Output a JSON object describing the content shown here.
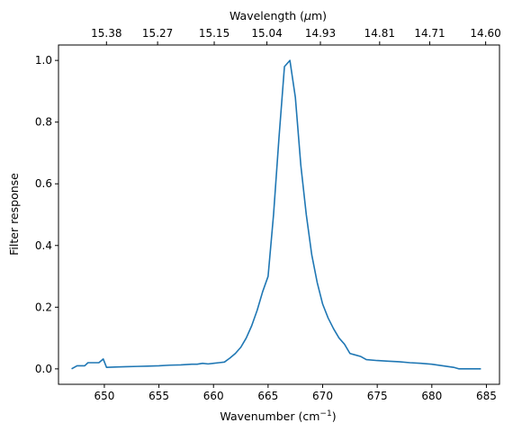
{
  "chart_data": {
    "type": "line",
    "xlabel": "Wavenumber (cm",
    "xlabel_sup": "−1",
    "xlabel_end": ")",
    "ylabel": "Filter response",
    "top_xlabel": "Wavelength (",
    "top_xlabel_mu": "μ",
    "top_xlabel_end": "m)",
    "xlim": [
      645.8,
      686.2
    ],
    "ylim": [
      -0.05,
      1.05
    ],
    "x_ticks": [
      650,
      655,
      660,
      665,
      670,
      675,
      680,
      685
    ],
    "x_tick_labels": [
      "650",
      "655",
      "660",
      "665",
      "670",
      "675",
      "680",
      "685"
    ],
    "y_ticks": [
      0.0,
      0.2,
      0.4,
      0.6,
      0.8,
      1.0
    ],
    "y_tick_labels": [
      "0.0",
      "0.2",
      "0.4",
      "0.6",
      "0.8",
      "1.0"
    ],
    "top_ticks": [
      15.38,
      15.27,
      15.15,
      15.04,
      14.93,
      14.81,
      14.71,
      14.6
    ],
    "top_tick_labels": [
      "15.38",
      "15.27",
      "15.15",
      "15.04",
      "14.93",
      "14.81",
      "14.71",
      "14.60"
    ],
    "line_color": "#1f77b4",
    "series": [
      {
        "x": [
          647.0,
          647.5,
          648.2,
          648.5,
          649.0,
          649.5,
          649.9,
          650.2,
          651.0,
          652.0,
          653.0,
          654.0,
          655.0,
          656.0,
          657.0,
          658.0,
          658.5,
          659.0,
          659.5,
          660.0,
          660.5,
          661.0,
          661.5,
          662.0,
          662.5,
          663.0,
          663.5,
          664.0,
          664.5,
          665.0,
          665.5,
          666.0,
          666.5,
          667.0,
          667.5,
          668.0,
          668.5,
          669.0,
          669.5,
          670.0,
          670.5,
          671.0,
          671.5,
          672.0,
          672.5,
          673.0,
          673.5,
          674.0,
          675.0,
          676.0,
          677.0,
          678.0,
          679.0,
          680.0,
          681.0,
          682.0,
          682.5,
          683.0,
          684.0,
          684.5
        ],
        "y": [
          0.0,
          0.01,
          0.01,
          0.02,
          0.02,
          0.02,
          0.032,
          0.005,
          0.006,
          0.007,
          0.008,
          0.009,
          0.01,
          0.012,
          0.013,
          0.015,
          0.015,
          0.018,
          0.016,
          0.018,
          0.02,
          0.022,
          0.035,
          0.05,
          0.07,
          0.1,
          0.14,
          0.19,
          0.25,
          0.3,
          0.5,
          0.75,
          0.98,
          1.0,
          0.88,
          0.66,
          0.5,
          0.37,
          0.28,
          0.21,
          0.165,
          0.13,
          0.1,
          0.08,
          0.05,
          0.045,
          0.04,
          0.03,
          0.027,
          0.025,
          0.023,
          0.02,
          0.018,
          0.015,
          0.01,
          0.005,
          0.0,
          0.0,
          0.0,
          0.0
        ]
      }
    ]
  }
}
